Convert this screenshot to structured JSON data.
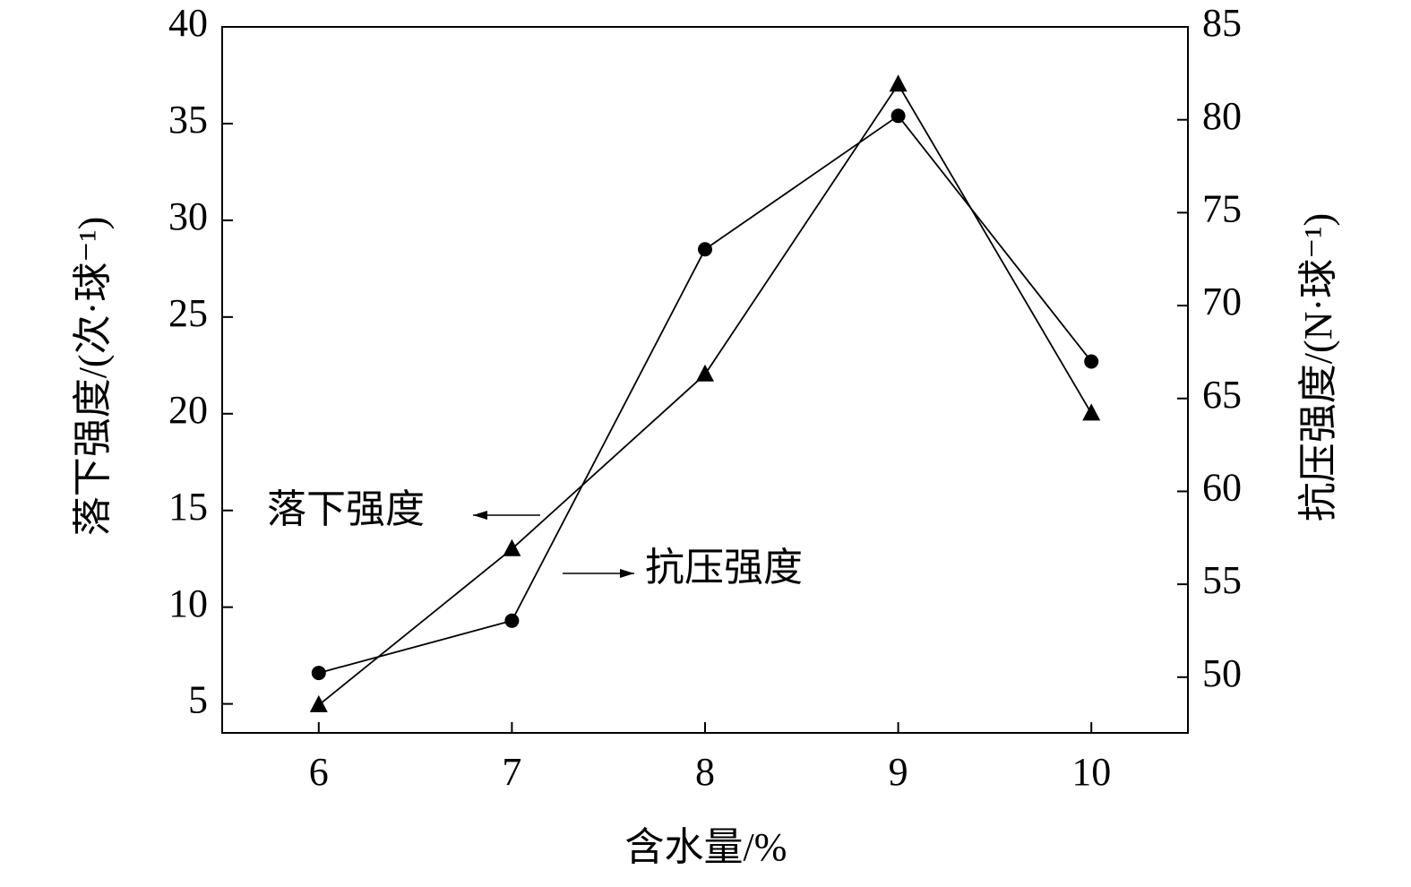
{
  "chart_data": {
    "type": "line",
    "x": [
      6,
      7,
      8,
      9,
      10
    ],
    "xlabel": "含水量/%",
    "ylabel": "落下强度/(次·球⁻¹)",
    "y2label": "抗压强度/(N·球⁻¹)",
    "xlim": [
      5.5,
      10.5
    ],
    "xticks": [
      6,
      7,
      8,
      9,
      10
    ],
    "ylim": [
      3.5,
      40
    ],
    "yticks": [
      5,
      10,
      15,
      20,
      25,
      30,
      35,
      40
    ],
    "y2lim": [
      47,
      85
    ],
    "y2ticks": [
      50,
      55,
      60,
      65,
      70,
      75,
      80,
      85
    ],
    "grid": false,
    "series": [
      {
        "name": "落下强度",
        "color": "#000000",
        "marker": "circle",
        "values": [
          6.6,
          9.3,
          28.5,
          35.4,
          22.7
        ]
      },
      {
        "name": "抗压强度",
        "color": "#000000",
        "marker": "triangle",
        "axis": "y2",
        "values": [
          48.5,
          56.9,
          66.3,
          81.9,
          64.2
        ]
      }
    ]
  }
}
